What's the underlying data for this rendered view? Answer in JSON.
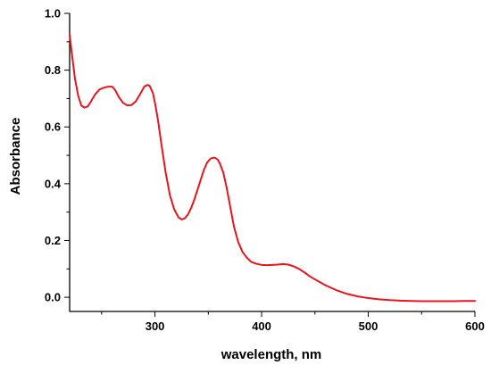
{
  "chart_data": {
    "type": "line",
    "title": "",
    "xlabel": "wavelength, nm",
    "ylabel": "Absorbance",
    "xlim": [
      220,
      600
    ],
    "ylim": [
      -0.05,
      1.0
    ],
    "xticks": [
      300,
      400,
      500,
      600
    ],
    "yticks": [
      0.0,
      0.2,
      0.4,
      0.6,
      0.8,
      1.0
    ],
    "ytick_labels": [
      "0.0",
      "0.2",
      "0.4",
      "0.6",
      "0.8",
      "1.0"
    ],
    "grid": false,
    "legend": "none",
    "series": [
      {
        "color": "#e8141e",
        "x": [
          220,
          222,
          225,
          228,
          231,
          234,
          237,
          240,
          244,
          248,
          252,
          256,
          260,
          263,
          266,
          270,
          274,
          278,
          282,
          286,
          290,
          293,
          295,
          298,
          300,
          303,
          306,
          310,
          314,
          318,
          322,
          325,
          328,
          331,
          334,
          337,
          340,
          343,
          346,
          349,
          352,
          355,
          357,
          359,
          361,
          364,
          367,
          370,
          374,
          378,
          382,
          386,
          390,
          395,
          400,
          405,
          410,
          415,
          420,
          425,
          430,
          435,
          440,
          445,
          450,
          460,
          470,
          480,
          490,
          500,
          510,
          520,
          530,
          540,
          550,
          560,
          570,
          580,
          590,
          600
        ],
        "values": [
          0.925,
          0.86,
          0.77,
          0.71,
          0.675,
          0.668,
          0.672,
          0.69,
          0.715,
          0.732,
          0.738,
          0.742,
          0.742,
          0.728,
          0.706,
          0.685,
          0.676,
          0.677,
          0.69,
          0.715,
          0.742,
          0.748,
          0.745,
          0.72,
          0.685,
          0.62,
          0.54,
          0.44,
          0.36,
          0.31,
          0.282,
          0.274,
          0.278,
          0.292,
          0.315,
          0.345,
          0.38,
          0.415,
          0.45,
          0.475,
          0.488,
          0.492,
          0.49,
          0.484,
          0.47,
          0.44,
          0.39,
          0.33,
          0.25,
          0.195,
          0.16,
          0.14,
          0.125,
          0.118,
          0.114,
          0.113,
          0.114,
          0.115,
          0.117,
          0.115,
          0.109,
          0.1,
          0.088,
          0.074,
          0.063,
          0.042,
          0.025,
          0.012,
          0.003,
          -0.003,
          -0.007,
          -0.01,
          -0.012,
          -0.013,
          -0.014,
          -0.014,
          -0.014,
          -0.014,
          -0.013,
          -0.013
        ]
      }
    ]
  }
}
